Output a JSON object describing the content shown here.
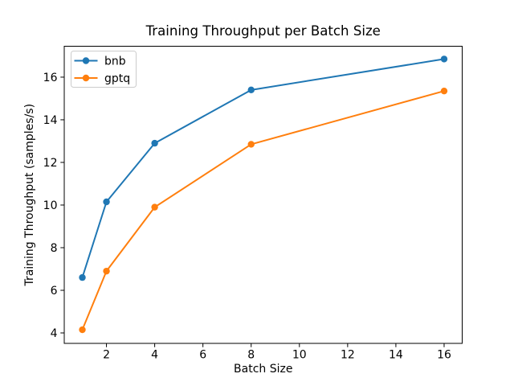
{
  "chart_data": {
    "type": "line",
    "title": "Training Throughput per Batch Size",
    "xlabel": "Batch Size",
    "ylabel": "Training Throughput (samples/s)",
    "x": [
      1,
      2,
      4,
      8,
      16
    ],
    "series": [
      {
        "name": "bnb",
        "color": "#1f77b4",
        "values": [
          6.6,
          10.15,
          12.9,
          15.4,
          16.85
        ]
      },
      {
        "name": "gptq",
        "color": "#ff7f0e",
        "values": [
          4.15,
          6.9,
          9.9,
          12.85,
          15.35
        ]
      }
    ],
    "xticks": [
      2,
      4,
      6,
      8,
      10,
      12,
      14,
      16
    ],
    "yticks": [
      4,
      6,
      8,
      10,
      12,
      14,
      16
    ],
    "xlim": [
      0.25,
      16.75
    ],
    "ylim": [
      3.51,
      17.45
    ],
    "grid": false,
    "legend_position": "upper left",
    "marker": "o",
    "background_color": "#ffffff",
    "axes_color": "#000000",
    "legend_border_color": "#cccccc"
  }
}
